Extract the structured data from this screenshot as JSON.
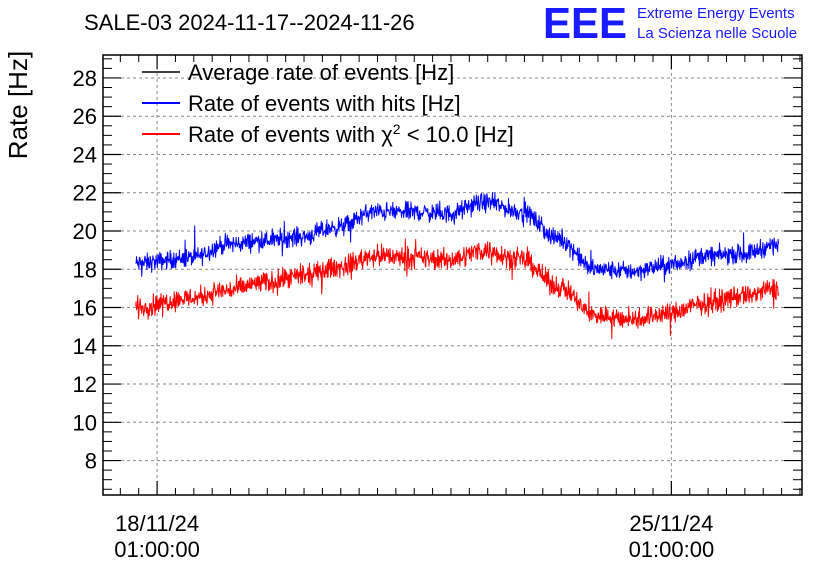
{
  "chart_data": {
    "type": "line",
    "title": "SALE-03 2024-11-17--2024-11-26",
    "ylabel": "Rate [Hz]",
    "xlabel": "",
    "ylim": [
      6.2,
      29.2
    ],
    "yticks": [
      8,
      10,
      12,
      14,
      16,
      18,
      20,
      22,
      24,
      26,
      28
    ],
    "xlim": [
      "2024-11-17T07:20:00",
      "2024-11-26T19:40:00"
    ],
    "xticks": [
      {
        "x": "2024-11-18T01:00:00",
        "line1": "18/11/24",
        "line2": "01:00:00"
      },
      {
        "x": "2024-11-25T01:00:00",
        "line1": "25/11/24",
        "line2": "01:00:00"
      }
    ],
    "grid": true,
    "legend": "top-left",
    "series": [
      {
        "name": "Average rate of events [Hz]",
        "color": "#000000",
        "x": [],
        "y": []
      },
      {
        "name": "Rate of events with hits [Hz]",
        "color": "#0000ff",
        "spread": 0.7,
        "x": [
          "2024-11-17T18:00:00",
          "2024-11-18T12:00:00",
          "2024-11-19T00:00:00",
          "2024-11-19T12:00:00",
          "2024-11-20T00:00:00",
          "2024-11-20T12:00:00",
          "2024-11-21T00:00:00",
          "2024-11-21T12:00:00",
          "2024-11-22T00:00:00",
          "2024-11-22T12:00:00",
          "2024-11-23T00:00:00",
          "2024-11-23T12:00:00",
          "2024-11-24T00:00:00",
          "2024-11-24T12:00:00",
          "2024-11-25T00:00:00",
          "2024-11-25T12:00:00",
          "2024-11-26T00:00:00",
          "2024-11-26T12:00:00"
        ],
        "y": [
          18.3,
          18.6,
          19.3,
          19.5,
          19.7,
          20.2,
          21.0,
          21.0,
          20.9,
          21.5,
          21.0,
          19.6,
          18.0,
          17.9,
          18.2,
          18.7,
          18.8,
          19.3
        ]
      },
      {
        "name": "Rate of events with χ² < 10.0 [Hz]",
        "legend_parts": [
          "Rate of events with ",
          "χ",
          "2",
          " < 10.0 [Hz]"
        ],
        "color": "#ff0000",
        "spread": 0.8,
        "x": [
          "2024-11-17T18:00:00",
          "2024-11-18T12:00:00",
          "2024-11-19T00:00:00",
          "2024-11-19T12:00:00",
          "2024-11-20T00:00:00",
          "2024-11-20T12:00:00",
          "2024-11-21T00:00:00",
          "2024-11-21T12:00:00",
          "2024-11-22T00:00:00",
          "2024-11-22T12:00:00",
          "2024-11-23T00:00:00",
          "2024-11-23T12:00:00",
          "2024-11-24T00:00:00",
          "2024-11-24T12:00:00",
          "2024-11-25T00:00:00",
          "2024-11-25T12:00:00",
          "2024-11-26T00:00:00",
          "2024-11-26T12:00:00"
        ],
        "y": [
          16.0,
          16.5,
          16.9,
          17.3,
          17.6,
          18.1,
          18.7,
          18.6,
          18.5,
          19.0,
          18.5,
          17.1,
          15.6,
          15.4,
          15.7,
          16.2,
          16.6,
          17.0
        ]
      }
    ]
  },
  "logo": {
    "big": "EEE",
    "line1": "Extreme Energy Events",
    "line2": "La Scienza nelle Scuole"
  }
}
